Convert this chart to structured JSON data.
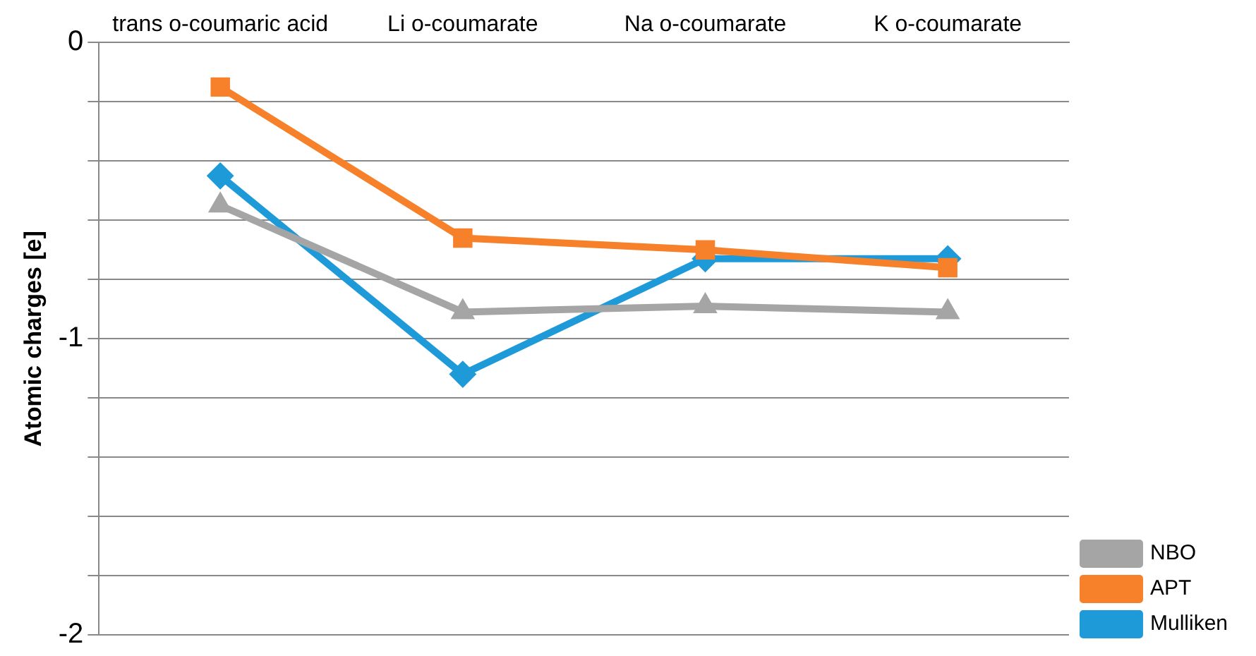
{
  "chart_data": {
    "type": "line",
    "ylabel": "Atomic charges [e]",
    "categories": [
      "trans o-coumaric acid",
      "Li o-coumarate",
      "Na o-coumarate",
      "K o-coumarate"
    ],
    "series": [
      {
        "name": "Mulliken",
        "color": "#1f9ad9",
        "marker": "diamond",
        "values": [
          -0.45,
          -1.12,
          -0.73,
          -0.73
        ]
      },
      {
        "name": "APT",
        "color": "#f7802a",
        "marker": "square",
        "values": [
          -0.15,
          -0.66,
          -0.7,
          -0.76
        ]
      },
      {
        "name": "NBO",
        "color": "#a5a5a5",
        "marker": "triangle",
        "values": [
          -0.55,
          -0.91,
          -0.89,
          -0.91
        ]
      }
    ],
    "ylim": [
      -2,
      0
    ],
    "yticks": [
      -2,
      {
        "value": -1.8,
        "label": null
      },
      {
        "value": -1.6,
        "label": null
      },
      {
        "value": -1.4,
        "label": null
      },
      {
        "value": -1.2,
        "label": null
      },
      -1,
      {
        "value": -0.8,
        "label": null
      },
      {
        "value": -0.6,
        "label": null
      },
      {
        "value": -0.4,
        "label": null
      },
      {
        "value": -0.2,
        "label": null
      },
      0
    ],
    "grid": "y",
    "legend": "bottom right",
    "line_style": "solid"
  }
}
